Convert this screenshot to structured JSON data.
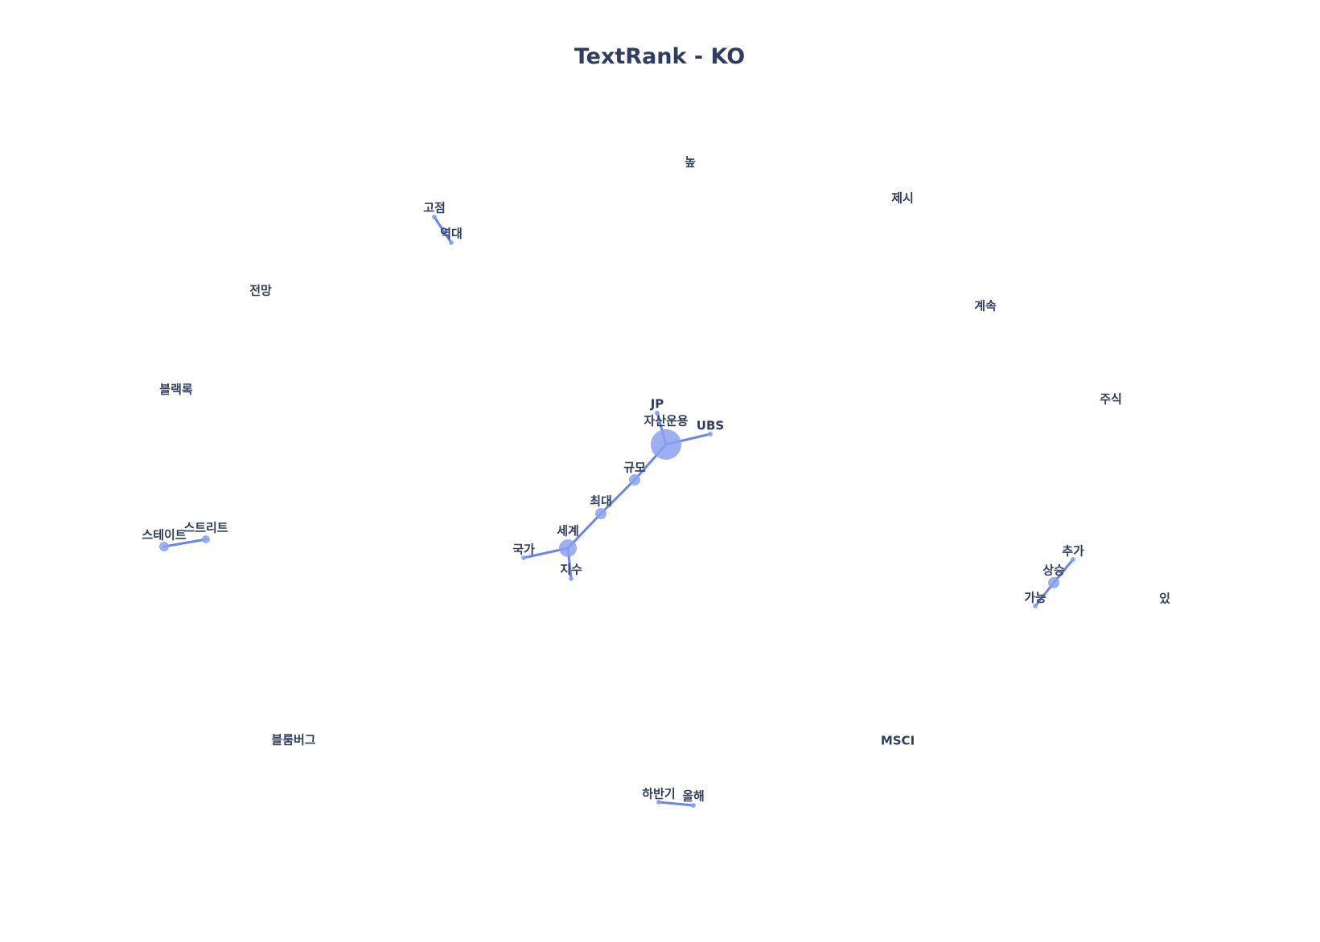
{
  "title": "TextRank - KO",
  "colors": {
    "edge": "#6b86e6",
    "node": "#8aa1ef",
    "text": "#2f3e5d"
  },
  "nodes": [
    {
      "id": "jasanunyong",
      "label": "자산운용"
    },
    {
      "id": "jp",
      "label": "JP"
    },
    {
      "id": "ubs",
      "label": "UBS"
    },
    {
      "id": "gyumo",
      "label": "규모"
    },
    {
      "id": "choedae",
      "label": "최대"
    },
    {
      "id": "segye",
      "label": "세계"
    },
    {
      "id": "gukga",
      "label": "국가"
    },
    {
      "id": "jisu",
      "label": "지수"
    },
    {
      "id": "gojeom",
      "label": "고점"
    },
    {
      "id": "yeokdae",
      "label": "역대"
    },
    {
      "id": "seuteiteu",
      "label": "스테이트"
    },
    {
      "id": "seuteuriteu",
      "label": "스트리트"
    },
    {
      "id": "sangseung",
      "label": "상승"
    },
    {
      "id": "chuga",
      "label": "추가"
    },
    {
      "id": "ganeung",
      "label": "가능"
    },
    {
      "id": "habangi",
      "label": "하반기"
    },
    {
      "id": "olhae",
      "label": "올해"
    },
    {
      "id": "nop",
      "label": "높"
    },
    {
      "id": "jesi",
      "label": "제시"
    },
    {
      "id": "jeonmang",
      "label": "전망"
    },
    {
      "id": "gyesok",
      "label": "계속"
    },
    {
      "id": "beullaekrok",
      "label": "블랙록"
    },
    {
      "id": "jusik",
      "label": "주식"
    },
    {
      "id": "it",
      "label": "있"
    },
    {
      "id": "beullumbeogeu",
      "label": "블룸버그"
    },
    {
      "id": "msci",
      "label": "MSCI"
    }
  ],
  "edges": [
    [
      "jasanunyong",
      "jp"
    ],
    [
      "jasanunyong",
      "ubs"
    ],
    [
      "jasanunyong",
      "gyumo"
    ],
    [
      "gyumo",
      "choedae"
    ],
    [
      "choedae",
      "segye"
    ],
    [
      "segye",
      "gukga"
    ],
    [
      "segye",
      "jisu"
    ],
    [
      "gojeom",
      "yeokdae"
    ],
    [
      "seuteiteu",
      "seuteuriteu"
    ],
    [
      "sangseung",
      "chuga"
    ],
    [
      "sangseung",
      "ganeung"
    ],
    [
      "habangi",
      "olhae"
    ]
  ]
}
